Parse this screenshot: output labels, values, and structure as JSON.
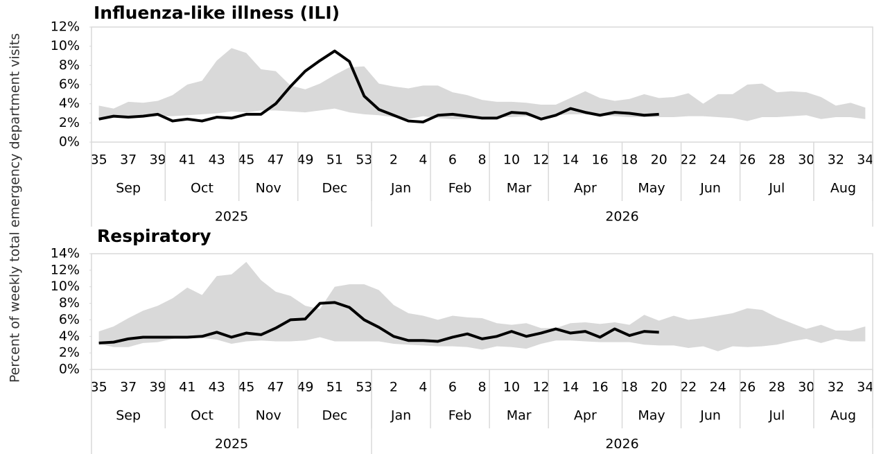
{
  "ylabel": "Percent of weekly total emergency department visits",
  "chart_data": [
    {
      "type": "line",
      "title": "Influenza-like illness (ILI)",
      "categories": [
        "35",
        null,
        "37",
        null,
        "39",
        null,
        "41",
        null,
        "43",
        null,
        "45",
        null,
        "47",
        null,
        "49",
        null,
        "51",
        null,
        "53",
        null,
        "2",
        null,
        "4",
        null,
        "6",
        null,
        "8",
        null,
        "10",
        null,
        "12",
        null,
        "14",
        null,
        "16",
        null,
        "18",
        null,
        "20",
        null,
        "22",
        null,
        "24",
        null,
        "26",
        null,
        "28",
        null,
        "30",
        null,
        "32",
        null,
        "34"
      ],
      "months": [
        {
          "label": "Sep",
          "span": 5
        },
        {
          "label": "Oct",
          "span": 5
        },
        {
          "label": "Nov",
          "span": 4
        },
        {
          "label": "Dec",
          "span": 5
        },
        {
          "label": "Jan",
          "span": 4
        },
        {
          "label": "Feb",
          "span": 4
        },
        {
          "label": "Mar",
          "span": 4
        },
        {
          "label": "Apr",
          "span": 5
        },
        {
          "label": "May",
          "span": 4
        },
        {
          "label": "Jun",
          "span": 4
        },
        {
          "label": "Jul",
          "span": 5
        },
        {
          "label": "Aug",
          "span": 4
        }
      ],
      "years": [
        {
          "label": "2025",
          "span": 19
        },
        {
          "label": "2026",
          "span": 34
        }
      ],
      "band": {
        "color": "#d9d9d9",
        "upper": [
          3.8,
          3.5,
          4.2,
          4.1,
          4.3,
          4.9,
          6.0,
          6.4,
          8.5,
          9.8,
          9.3,
          7.6,
          7.4,
          5.9,
          5.5,
          6.1,
          7.0,
          7.8,
          7.9,
          6.1,
          5.8,
          5.6,
          5.9,
          5.9,
          5.2,
          4.9,
          4.4,
          4.2,
          4.2,
          4.1,
          3.9,
          3.9,
          4.6,
          5.3,
          4.6,
          4.3,
          4.5,
          5.0,
          4.6,
          4.7,
          5.1,
          4.0,
          5.0,
          5.0,
          6.0,
          6.1,
          5.2,
          5.3,
          5.2,
          4.7,
          3.8,
          4.1,
          3.6
        ],
        "lower": [
          2.4,
          2.6,
          2.6,
          2.6,
          2.7,
          2.7,
          2.8,
          2.9,
          3.0,
          3.2,
          3.1,
          3.3,
          3.3,
          3.2,
          3.1,
          3.3,
          3.5,
          3.1,
          2.9,
          2.8,
          2.6,
          2.4,
          2.7,
          2.5,
          2.4,
          2.4,
          2.5,
          2.6,
          2.6,
          2.7,
          2.6,
          2.8,
          2.9,
          2.9,
          2.8,
          2.7,
          2.6,
          2.6,
          2.6,
          2.6,
          2.7,
          2.7,
          2.6,
          2.5,
          2.2,
          2.6,
          2.6,
          2.7,
          2.8,
          2.4,
          2.6,
          2.6,
          2.4
        ]
      },
      "line": {
        "color": "#000000",
        "values": [
          2.4,
          2.7,
          2.6,
          2.7,
          2.9,
          2.2,
          2.4,
          2.2,
          2.6,
          2.5,
          2.9,
          2.9,
          4.0,
          5.8,
          7.4,
          8.5,
          9.5,
          8.4,
          4.8,
          3.4,
          2.8,
          2.2,
          2.1,
          2.8,
          2.9,
          2.7,
          2.5,
          2.5,
          3.1,
          3.0,
          2.4,
          2.8,
          3.5,
          3.1,
          2.8,
          3.1,
          3.0,
          2.8,
          2.9,
          null,
          null,
          null,
          null,
          null,
          null,
          null,
          null,
          null,
          null,
          null,
          null,
          null,
          null
        ]
      },
      "ylim": [
        0,
        12
      ],
      "yticks": [
        {
          "value": 0,
          "label": "0%"
        },
        {
          "value": 2,
          "label": "2%"
        },
        {
          "value": 4,
          "label": "4%"
        },
        {
          "value": 6,
          "label": "6%"
        },
        {
          "value": 8,
          "label": "8%"
        },
        {
          "value": 10,
          "label": "10%"
        },
        {
          "value": 12,
          "label": "12%"
        }
      ],
      "grid": false
    },
    {
      "type": "line",
      "title": "Respiratory",
      "categories": [
        "35",
        null,
        "37",
        null,
        "39",
        null,
        "41",
        null,
        "43",
        null,
        "45",
        null,
        "47",
        null,
        "49",
        null,
        "51",
        null,
        "53",
        null,
        "2",
        null,
        "4",
        null,
        "6",
        null,
        "8",
        null,
        "10",
        null,
        "12",
        null,
        "14",
        null,
        "16",
        null,
        "18",
        null,
        "20",
        null,
        "22",
        null,
        "24",
        null,
        "26",
        null,
        "28",
        null,
        "30",
        null,
        "32",
        null,
        "34"
      ],
      "months": [
        {
          "label": "Sep",
          "span": 5
        },
        {
          "label": "Oct",
          "span": 5
        },
        {
          "label": "Nov",
          "span": 4
        },
        {
          "label": "Dec",
          "span": 5
        },
        {
          "label": "Jan",
          "span": 4
        },
        {
          "label": "Feb",
          "span": 4
        },
        {
          "label": "Mar",
          "span": 4
        },
        {
          "label": "Apr",
          "span": 5
        },
        {
          "label": "May",
          "span": 4
        },
        {
          "label": "Jun",
          "span": 4
        },
        {
          "label": "Jul",
          "span": 5
        },
        {
          "label": "Aug",
          "span": 4
        }
      ],
      "years": [
        {
          "label": "2025",
          "span": 19
        },
        {
          "label": "2026",
          "span": 34
        }
      ],
      "band": {
        "color": "#d9d9d9",
        "upper": [
          4.6,
          5.2,
          6.2,
          7.1,
          7.7,
          8.6,
          9.9,
          9.0,
          11.3,
          11.5,
          13.0,
          10.8,
          9.4,
          8.9,
          7.7,
          7.3,
          10.0,
          10.3,
          10.3,
          9.6,
          7.8,
          6.8,
          6.5,
          6.0,
          6.5,
          6.3,
          6.2,
          5.6,
          5.4,
          5.6,
          5.0,
          5.0,
          5.6,
          5.7,
          5.5,
          5.7,
          5.4,
          6.6,
          5.9,
          6.5,
          6.0,
          6.2,
          6.5,
          6.8,
          7.4,
          7.2,
          6.3,
          5.6,
          4.9,
          5.4,
          4.7,
          4.7,
          5.2
        ],
        "lower": [
          3.1,
          2.7,
          2.7,
          3.2,
          3.3,
          3.7,
          3.9,
          3.8,
          3.6,
          3.1,
          3.4,
          3.5,
          3.4,
          3.4,
          3.5,
          3.9,
          3.4,
          3.4,
          3.4,
          3.4,
          3.1,
          3.0,
          2.9,
          2.8,
          2.8,
          2.7,
          2.4,
          2.8,
          2.7,
          2.5,
          3.1,
          3.5,
          3.5,
          3.4,
          3.3,
          3.3,
          3.3,
          3.0,
          2.9,
          2.9,
          2.6,
          2.8,
          2.2,
          2.8,
          2.7,
          2.8,
          3.0,
          3.4,
          3.7,
          3.2,
          3.7,
          3.4,
          3.4
        ]
      },
      "line": {
        "color": "#000000",
        "values": [
          3.2,
          3.3,
          3.7,
          3.9,
          3.9,
          3.9,
          3.9,
          4.0,
          4.5,
          3.9,
          4.4,
          4.2,
          5.0,
          6.0,
          6.1,
          8.0,
          8.1,
          7.5,
          6.0,
          5.1,
          4.0,
          3.5,
          3.5,
          3.4,
          3.9,
          4.3,
          3.7,
          4.0,
          4.6,
          4.0,
          4.4,
          4.9,
          4.4,
          4.6,
          3.9,
          4.9,
          4.1,
          4.6,
          4.5,
          null,
          null,
          null,
          null,
          null,
          null,
          null,
          null,
          null,
          null,
          null,
          null,
          null,
          null
        ]
      },
      "ylim": [
        0,
        14
      ],
      "yticks": [
        {
          "value": 0,
          "label": "0%"
        },
        {
          "value": 2,
          "label": "2%"
        },
        {
          "value": 4,
          "label": "4%"
        },
        {
          "value": 6,
          "label": "6%"
        },
        {
          "value": 8,
          "label": "8%"
        },
        {
          "value": 10,
          "label": "10%"
        },
        {
          "value": 12,
          "label": "12%"
        },
        {
          "value": 14,
          "label": "14%"
        }
      ],
      "grid": false
    }
  ]
}
